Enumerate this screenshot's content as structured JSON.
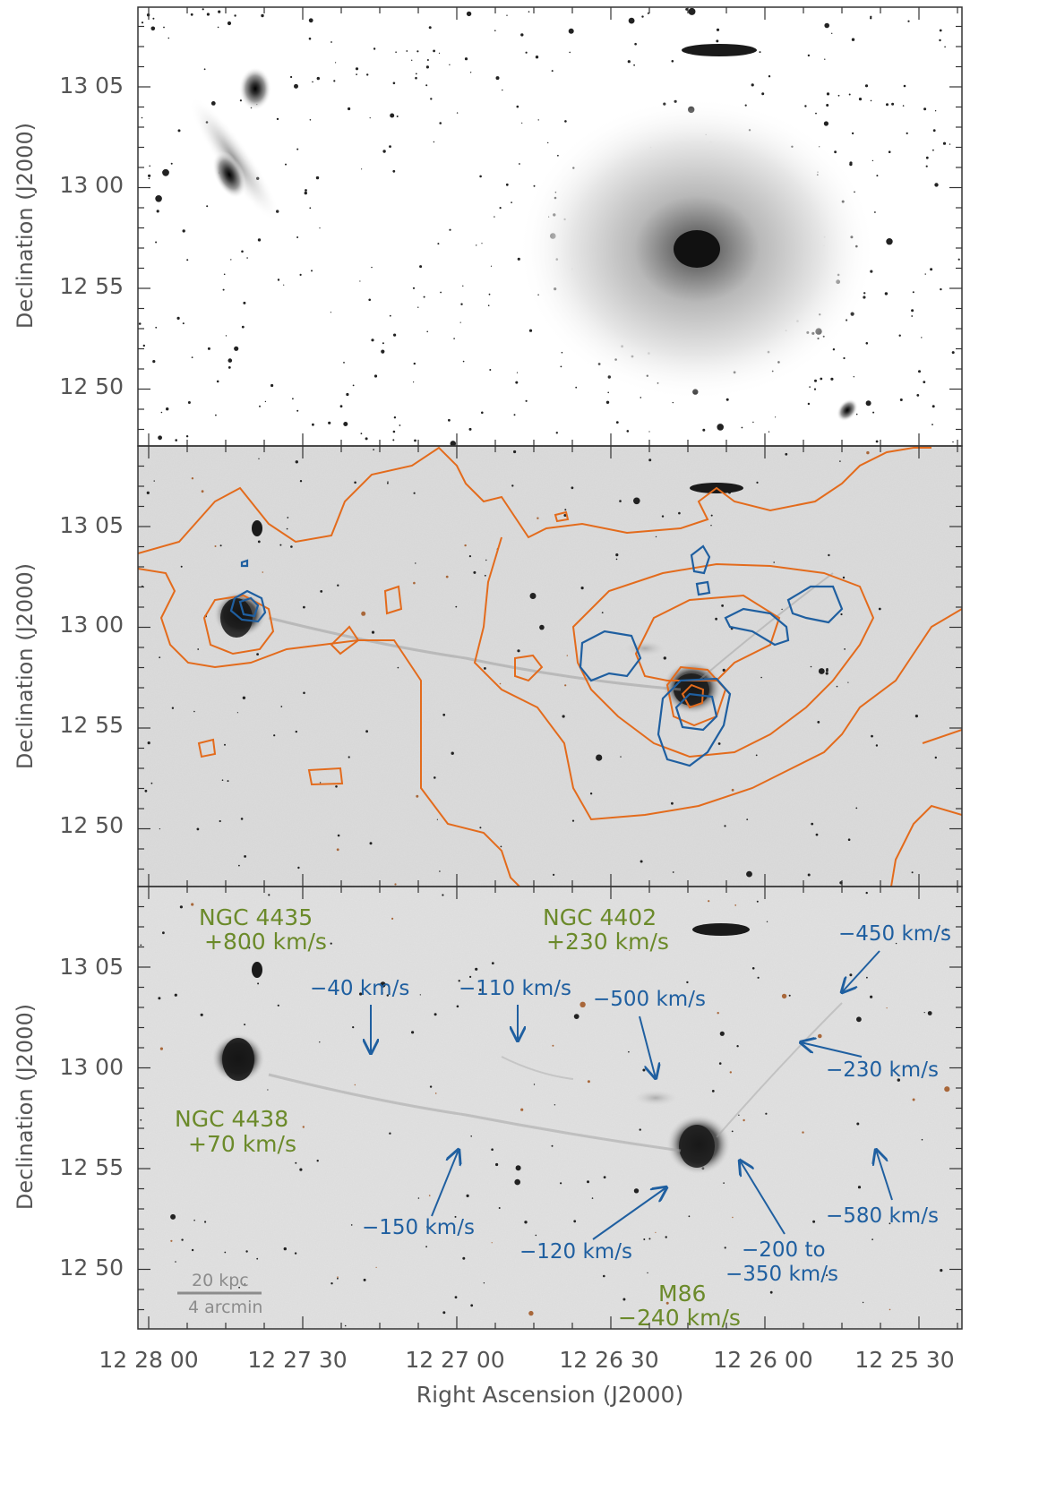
{
  "axes": {
    "ylabel": "Declination (J2000)",
    "xlabel": "Right Ascension (J2000)",
    "dec_ticks": [
      "13 05",
      "13 00",
      "12 55",
      "12 50"
    ],
    "ra_ticks": [
      "12 28 00",
      "12 27 30",
      "12 27 00",
      "12 26 30",
      "12 26 00",
      "12 25 30"
    ]
  },
  "colors": {
    "halpha_contour_1": "#e36b1c",
    "halpha_contour_2": "#1f5fa0",
    "galaxy_label": "#6b8a2a",
    "velocity_label": "#1f5fa0",
    "scalebar": "#8c8c8c"
  },
  "galaxies": [
    {
      "name": "NGC 4435",
      "velocity": "+800 km/s"
    },
    {
      "name": "NGC 4402",
      "velocity": "+230 km/s"
    },
    {
      "name": "NGC 4438",
      "velocity": "+70 km/s"
    },
    {
      "name": "M86",
      "velocity": "−240 km/s"
    }
  ],
  "velocities": [
    "−450 km/s",
    "−40 km/s",
    "−110 km/s",
    "−500 km/s",
    "−230 km/s",
    "−150 km/s",
    "−120 km/s",
    "−200 to",
    "−350 km/s",
    "−580 km/s"
  ],
  "scalebar": {
    "top": "20 kpc",
    "bottom": "4 arcmin"
  }
}
